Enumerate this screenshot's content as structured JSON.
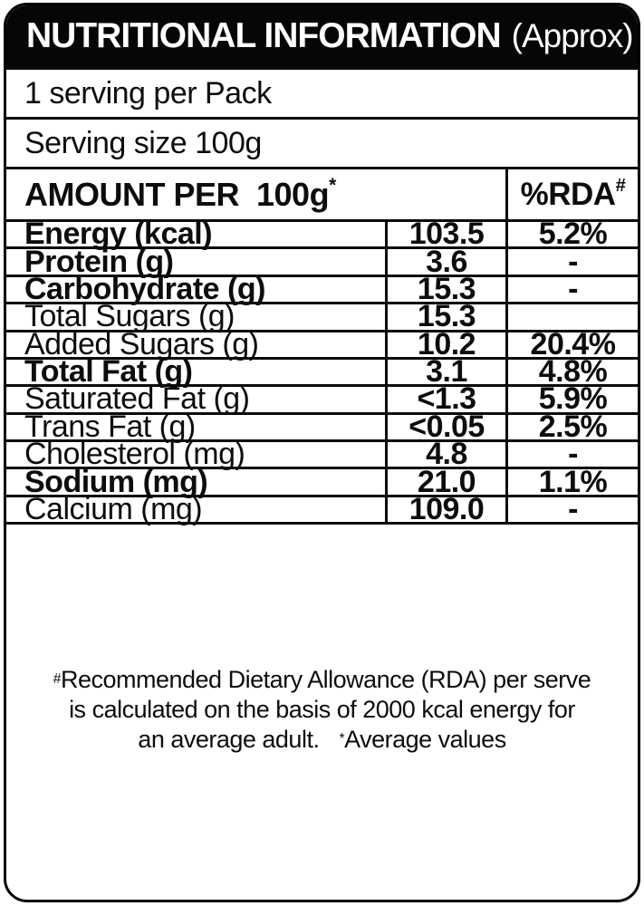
{
  "colors": {
    "ink": "#0d0d0d",
    "paper": "#ffffff",
    "header_bg": "#060606"
  },
  "header": {
    "title": "NUTRITIONAL INFORMATION",
    "approx": "(Approx)"
  },
  "serving": {
    "per_pack": "1 serving per Pack",
    "size": "Serving size 100g"
  },
  "table": {
    "amount_header": "AMOUNT PER  100g",
    "amount_sup": "*",
    "rda_header": "%RDA",
    "rda_sup": "#",
    "rows": [
      {
        "label": "Energy (kcal)",
        "value": "103.5",
        "rda": "5.2%",
        "bold": true
      },
      {
        "label": "Protein (g)",
        "value": "3.6",
        "rda": "-",
        "bold": true
      },
      {
        "label": "Carbohydrate (g)",
        "value": "15.3",
        "rda": "-",
        "bold": true
      },
      {
        "label": "Total Sugars (g)",
        "value": "15.3",
        "rda": "",
        "bold": false
      },
      {
        "label": "Added Sugars (g)",
        "value": "10.2",
        "rda": "20.4%",
        "bold": false
      },
      {
        "label": "Total Fat (g)",
        "value": "3.1",
        "rda": "4.8%",
        "bold": true
      },
      {
        "label": "Saturated Fat (g)",
        "value": "<1.3",
        "rda": "5.9%",
        "bold": false
      },
      {
        "label": "Trans Fat (g)",
        "value": "<0.05",
        "rda": "2.5%",
        "bold": false
      },
      {
        "label": "Cholesterol (mg)",
        "value": "4.8",
        "rda": "-",
        "bold": false
      },
      {
        "label": "Sodium (mg)",
        "value": "21.0",
        "rda": "1.1%",
        "bold": true
      },
      {
        "label": "Calcium (mg)",
        "value": "109.0",
        "rda": "-",
        "bold": false
      }
    ]
  },
  "footnote": {
    "sup1": "#",
    "line1": "Recommended Dietary Allowance (RDA) per serve",
    "line2": "is calculated on the basis of 2000 kcal energy for",
    "line3": "an average adult.",
    "sup2": "*",
    "line3_end": "Average values"
  }
}
